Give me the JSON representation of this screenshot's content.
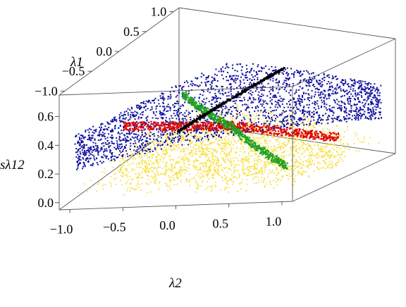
{
  "chart_data": {
    "type": "scatter",
    "dimension": "3d",
    "grid": false,
    "legend": "none",
    "axes": {
      "x": {
        "label": "λ2",
        "ticks": [
          "−1.0",
          "−0.5",
          "0.0",
          "0.5",
          "1.0"
        ],
        "tick_values": [
          -1.0,
          -0.5,
          0.0,
          0.5,
          1.0
        ],
        "range": [
          -1.1,
          1.1
        ]
      },
      "y": {
        "label": "λ1",
        "ticks": [
          "−1.0",
          "−0.5",
          "0.0",
          "0.5",
          "1.0"
        ],
        "tick_values": [
          -1.0,
          -0.5,
          0.0,
          0.5,
          1.0
        ],
        "range": [
          -1.1,
          1.1
        ]
      },
      "z": {
        "label": "sλ12",
        "ticks": [
          "0.0",
          "0.2",
          "0.4",
          "0.6"
        ],
        "tick_values": [
          0.0,
          0.2,
          0.4,
          0.6
        ],
        "range": [
          -0.05,
          0.75
        ]
      }
    },
    "series": [
      {
        "color": "#f7e040",
        "description": "broad cloud",
        "x_range": [
          -1.0,
          1.0
        ],
        "y_range": [
          -1.0,
          1.0
        ],
        "z_range": [
          0.0,
          0.22
        ]
      },
      {
        "color": "#e00000",
        "description": "band along x",
        "x_range": [
          -1.05,
          1.05
        ],
        "y": 0.0,
        "z_range": [
          0.2,
          0.26
        ]
      },
      {
        "color": "#20a020",
        "description": "band along x = y",
        "x_range": [
          -1.0,
          1.0
        ],
        "z_range": [
          0.15,
          0.3
        ]
      },
      {
        "color": "#1010a0",
        "description": "plane x = y",
        "x_range": [
          -1.0,
          1.0
        ],
        "z_range": [
          0.2,
          0.72
        ]
      },
      {
        "color": "#000000",
        "description": "curve x = y",
        "x_range": [
          -0.35,
          0.35
        ],
        "z_range": [
          0.3,
          0.62
        ]
      }
    ]
  }
}
